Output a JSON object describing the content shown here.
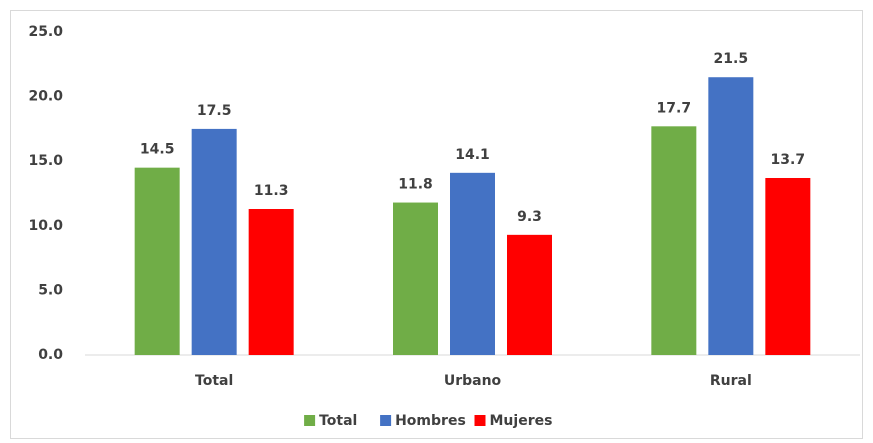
{
  "chart_data": {
    "type": "bar",
    "categories": [
      "Total",
      "Urbano",
      "Rural"
    ],
    "series": [
      {
        "name": "Total",
        "color": "#70ad47",
        "values": [
          14.5,
          11.8,
          17.7
        ]
      },
      {
        "name": "Hombres",
        "color": "#4472c4",
        "values": [
          17.5,
          14.1,
          21.5
        ]
      },
      {
        "name": "Mujeres",
        "color": "#ff0000",
        "values": [
          11.3,
          9.3,
          13.7
        ]
      }
    ],
    "ylim": [
      0,
      25
    ],
    "yticks": [
      {
        "value": 0,
        "label": "0.0"
      },
      {
        "value": 5,
        "label": "5.0"
      },
      {
        "value": 10,
        "label": "10.0"
      },
      {
        "value": 15,
        "label": "15.0"
      },
      {
        "value": 20,
        "label": "20.0"
      },
      {
        "value": 25,
        "label": "25.0"
      }
    ],
    "grid": false,
    "legend": "bottom"
  }
}
